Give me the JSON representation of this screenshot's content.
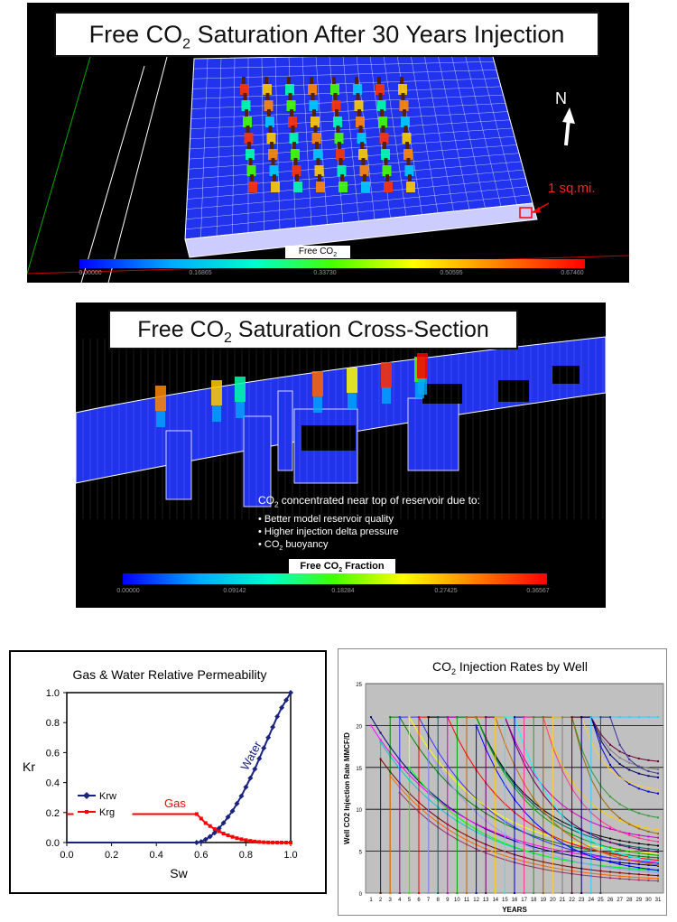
{
  "map_panel": {
    "title_pre": "Free CO",
    "title_sub": "2",
    "title_post": " Saturation After 30 Years Injection",
    "north_label": "N",
    "scale_label": "1 sq.mi.",
    "colorbar_label_pre": "Free CO",
    "colorbar_label_sub": "2",
    "colorbar_ticks": [
      "0.00000",
      "0.16865",
      "0.33730",
      "0.50595",
      "0.67460"
    ]
  },
  "xsec_panel": {
    "title_pre": "Free CO",
    "title_sub": "2",
    "title_post": " Saturation Cross-Section",
    "note_pre": "CO",
    "note_sub": "2",
    "note_post": " concentrated near top of reservoir due to:",
    "bullets": [
      "• Better model reservoir quality",
      "• Higher injection delta pressure"
    ],
    "bullet3_pre": "• CO",
    "bullet3_sub": "2",
    "bullet3_post": " buoyancy",
    "colorbar_label_pre": "Free CO",
    "colorbar_label_sub": "2",
    "colorbar_label_post": " Fraction",
    "colorbar_ticks": [
      "0.00000",
      "0.09142",
      "0.18284",
      "0.27425",
      "0.36567"
    ]
  },
  "colors": {
    "krw": "#1a237e",
    "krg": "#ff0000",
    "colormap": [
      "#0000ff",
      "#00aaff",
      "#00ffaa",
      "#55ff00",
      "#ffff00",
      "#ff8800",
      "#ff0000"
    ]
  },
  "chart_data": [
    {
      "type": "line",
      "title": "Gas & Water Relative Permeability",
      "xlabel": "Sw",
      "ylabel": "Kr",
      "xlim": [
        0,
        1
      ],
      "ylim": [
        0,
        1
      ],
      "xticks": [
        "0.0",
        "0.2",
        "0.4",
        "0.6",
        "0.8",
        "1.0"
      ],
      "yticks": [
        "0.0",
        "0.2",
        "0.4",
        "0.6",
        "0.8",
        "1.0"
      ],
      "legend_position": "left",
      "series": [
        {
          "name": "Krw",
          "annotation": "Water",
          "x": [
            0,
            0.58,
            0.6,
            0.62,
            0.64,
            0.66,
            0.68,
            0.7,
            0.72,
            0.74,
            0.76,
            0.78,
            0.8,
            0.82,
            0.84,
            0.86,
            0.88,
            0.9,
            0.92,
            0.94,
            0.96,
            0.98,
            1.0
          ],
          "y": [
            0,
            0,
            0.005,
            0.02,
            0.04,
            0.065,
            0.095,
            0.13,
            0.17,
            0.21,
            0.26,
            0.31,
            0.37,
            0.43,
            0.49,
            0.56,
            0.63,
            0.7,
            0.77,
            0.84,
            0.9,
            0.95,
            1.0
          ]
        },
        {
          "name": "Krg",
          "annotation": "Gas",
          "x": [
            0,
            0.58,
            0.6,
            0.62,
            0.64,
            0.66,
            0.68,
            0.7,
            0.72,
            0.74,
            0.76,
            0.78,
            0.8,
            0.82,
            0.84,
            0.86,
            0.88,
            0.9,
            0.92,
            0.94,
            0.96,
            0.98,
            1.0
          ],
          "y": [
            0.19,
            0.19,
            0.16,
            0.13,
            0.11,
            0.09,
            0.075,
            0.06,
            0.048,
            0.038,
            0.029,
            0.022,
            0.016,
            0.011,
            0.007,
            0.004,
            0.002,
            0.001,
            0.0005,
            0.0002,
            0.0001,
            0,
            0
          ]
        }
      ]
    },
    {
      "type": "line",
      "title_pre": "CO",
      "title_sub": "2",
      "title_post": " Injection Rates by Well",
      "xlabel": "YEARS",
      "ylabel": "Well CO2 Injection Rate MMCF/D",
      "ylim": [
        0,
        25
      ],
      "yticks": [
        "0",
        "5",
        "10",
        "15",
        "20",
        "25"
      ],
      "x": [
        1,
        2,
        3,
        4,
        5,
        6,
        7,
        8,
        9,
        10,
        11,
        12,
        13,
        14,
        15,
        16,
        17,
        18,
        19,
        20,
        21,
        22,
        23,
        24,
        25,
        26,
        27,
        28,
        29,
        30,
        31
      ],
      "xticks": [
        "1",
        "2",
        "3",
        "4",
        "5",
        "6",
        "7",
        "8",
        "9",
        "10",
        "11",
        "12",
        "13",
        "14",
        "15",
        "16",
        "17",
        "18",
        "19",
        "20",
        "21",
        "22",
        "23",
        "24",
        "25",
        "26",
        "27",
        "28",
        "29",
        "30",
        "31"
      ],
      "background": "#c0c0c0",
      "series": [
        {
          "start": 1,
          "peak": 21,
          "plateau": 0,
          "final": 2.5,
          "color": "#000080"
        },
        {
          "start": 1,
          "peak": 20,
          "plateau": 0,
          "final": 3.0,
          "color": "#ff00ff"
        },
        {
          "start": 2,
          "peak": 18,
          "plateau": 0,
          "final": 2.0,
          "color": "#00cccc"
        },
        {
          "start": 2,
          "peak": 16,
          "plateau": 0,
          "final": 1.5,
          "color": "#800000"
        },
        {
          "start": 3,
          "peak": 21,
          "plateau": 1,
          "final": 3.5,
          "color": "#008000"
        },
        {
          "start": 3,
          "peak": 14,
          "plateau": 0,
          "final": 1.2,
          "color": "#ff6600"
        },
        {
          "start": 4,
          "peak": 21,
          "plateau": 2,
          "final": 2.8,
          "color": "#3333ff"
        },
        {
          "start": 4,
          "peak": 12,
          "plateau": 0,
          "final": 1.0,
          "color": "#993366"
        },
        {
          "start": 5,
          "peak": 21,
          "plateau": 0,
          "final": 4.0,
          "color": "#ffff00"
        },
        {
          "start": 5,
          "peak": 15,
          "plateau": 0,
          "final": 2.2,
          "color": "#00ff00"
        },
        {
          "start": 6,
          "peak": 21,
          "plateau": 3,
          "final": 3.2,
          "color": "#ff0000"
        },
        {
          "start": 7,
          "peak": 21,
          "plateau": 5,
          "final": 5.0,
          "color": "#000000"
        },
        {
          "start": 7,
          "peak": 17,
          "plateau": 0,
          "final": 1.8,
          "color": "#9999ff"
        },
        {
          "start": 8,
          "peak": 21,
          "plateau": 4,
          "final": 4.5,
          "color": "#006666"
        },
        {
          "start": 9,
          "peak": 21,
          "plateau": 6,
          "final": 6.0,
          "color": "#cc00cc"
        },
        {
          "start": 10,
          "peak": 21,
          "plateau": 2,
          "final": 3.8,
          "color": "#00aa00"
        },
        {
          "start": 11,
          "peak": 21,
          "plateau": 3,
          "final": 2.6,
          "color": "#cc6600"
        },
        {
          "start": 12,
          "peak": 20,
          "plateau": 0,
          "final": 2.0,
          "color": "#0000ff"
        },
        {
          "start": 13,
          "peak": 21,
          "plateau": 2,
          "final": 4.2,
          "color": "#660066"
        },
        {
          "start": 14,
          "peak": 21,
          "plateau": 5,
          "final": 7.0,
          "color": "#ffcc00"
        },
        {
          "start": 15,
          "peak": 21,
          "plateau": 1,
          "final": 3.0,
          "color": "#00ffff"
        },
        {
          "start": 16,
          "peak": 21,
          "plateau": 8,
          "final": 11.5,
          "color": "#0000cc"
        },
        {
          "start": 17,
          "peak": 21,
          "plateau": 2,
          "final": 5.5,
          "color": "#ff3399"
        },
        {
          "start": 18,
          "peak": 21,
          "plateau": 4,
          "final": 8.5,
          "color": "#339933"
        },
        {
          "start": 19,
          "peak": 21,
          "plateau": 3,
          "final": 6.5,
          "color": "#996600"
        },
        {
          "start": 20,
          "peak": 21,
          "plateau": 3,
          "final": 12.0,
          "color": "#ffcc33"
        },
        {
          "start": 21,
          "peak": 21,
          "plateau": 3,
          "final": 14.5,
          "color": "#808080"
        },
        {
          "start": 22,
          "peak": 21,
          "plateau": 2,
          "final": 15.5,
          "color": "#660033"
        },
        {
          "start": 23,
          "peak": 21,
          "plateau": 1,
          "final": 13.5,
          "color": "#000066"
        },
        {
          "start": 24,
          "peak": 21,
          "plateau": 8,
          "final": 21.0,
          "color": "#33ccff"
        },
        {
          "start": 25,
          "peak": 21,
          "plateau": 1,
          "final": 14.0,
          "color": "#333399"
        }
      ]
    }
  ]
}
